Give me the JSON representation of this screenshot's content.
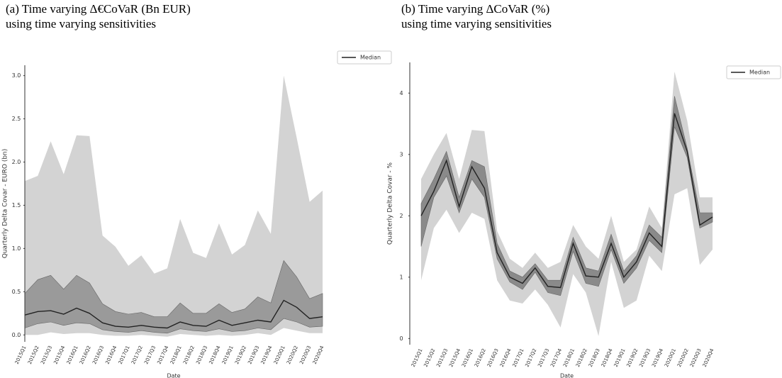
{
  "chart_data": [
    {
      "type": "line",
      "title": "(a) Time varying Δ€CoVaR (Bn EUR)",
      "subtitle": "using time varying sensitivities",
      "x_label": "Date",
      "y_label": "Quarterly Delta Covar - EURO (bn)",
      "categories": [
        "2015Q1",
        "2015Q2",
        "2015Q3",
        "2015Q4",
        "2016Q1",
        "2016Q2",
        "2016Q3",
        "2016Q4",
        "2017Q1",
        "2017Q2",
        "2017Q3",
        "2017Q4",
        "2018Q1",
        "2018Q2",
        "2018Q3",
        "2018Q4",
        "2019Q1",
        "2019Q2",
        "2019Q3",
        "2019Q4",
        "2020Q1",
        "2020Q2",
        "2020Q3",
        "2020Q4"
      ],
      "bands": [
        {
          "color": "#d3d3d3",
          "upper": [
            1.78,
            1.84,
            2.24,
            1.86,
            2.31,
            2.3,
            1.15,
            1.02,
            0.8,
            0.92,
            0.71,
            0.77,
            1.34,
            0.95,
            0.89,
            1.29,
            0.93,
            1.04,
            1.44,
            1.17,
            3.0,
            2.28,
            1.54,
            1.67
          ],
          "lower": [
            0.0,
            0.0,
            0.03,
            0.01,
            0.02,
            0.02,
            0.0,
            -0.01,
            -0.01,
            0.0,
            -0.01,
            -0.02,
            0.01,
            0.0,
            -0.01,
            0.0,
            -0.01,
            0.0,
            0.02,
            0.0,
            0.08,
            0.05,
            0.02,
            0.02
          ]
        },
        {
          "color": "#9a9a9a",
          "upper": [
            0.48,
            0.64,
            0.69,
            0.53,
            0.69,
            0.6,
            0.36,
            0.27,
            0.24,
            0.26,
            0.21,
            0.21,
            0.37,
            0.25,
            0.25,
            0.36,
            0.26,
            0.3,
            0.44,
            0.37,
            0.86,
            0.67,
            0.42,
            0.48
          ],
          "lower": [
            0.08,
            0.13,
            0.15,
            0.11,
            0.14,
            0.13,
            0.06,
            0.04,
            0.03,
            0.05,
            0.03,
            0.02,
            0.07,
            0.05,
            0.04,
            0.07,
            0.04,
            0.05,
            0.08,
            0.06,
            0.19,
            0.15,
            0.09,
            0.1
          ]
        }
      ],
      "series": [
        {
          "name": "Median",
          "color": "#222222",
          "values": [
            0.23,
            0.27,
            0.28,
            0.24,
            0.31,
            0.25,
            0.14,
            0.1,
            0.09,
            0.11,
            0.09,
            0.08,
            0.15,
            0.11,
            0.1,
            0.17,
            0.11,
            0.14,
            0.17,
            0.15,
            0.4,
            0.32,
            0.19,
            0.21
          ]
        }
      ],
      "ylim": [
        -0.08,
        3.12
      ],
      "yticks": [
        {
          "value": 0,
          "label": "0.0"
        },
        0.5,
        {
          "value": 1,
          "label": "1.0"
        },
        1.5,
        {
          "value": 2,
          "label": "2.0"
        },
        2.5,
        {
          "value": 3,
          "label": "3.0"
        }
      ],
      "legend": "outside-top-right",
      "grid": false
    },
    {
      "type": "line",
      "title": "(b) Time varying ΔCoVaR (%)",
      "subtitle": "using time varying sensitivities",
      "x_label": "Date",
      "y_label": "Quarterly Delta Covar - %",
      "categories": [
        "2015Q1",
        "2015Q2",
        "2015Q3",
        "2015Q4",
        "2016Q1",
        "2016Q2",
        "2016Q3",
        "2016Q4",
        "2017Q1",
        "2017Q2",
        "2017Q3",
        "2017Q4",
        "2018Q1",
        "2018Q2",
        "2018Q3",
        "2018Q4",
        "2019Q1",
        "2019Q2",
        "2019Q3",
        "2019Q4",
        "2020Q1",
        "2020Q2",
        "2020Q3",
        "2020Q4"
      ],
      "bands": [
        {
          "color": "#d3d3d3",
          "upper": [
            2.6,
            3.0,
            3.35,
            2.6,
            3.4,
            3.38,
            1.75,
            1.3,
            1.15,
            1.4,
            1.15,
            1.25,
            1.85,
            1.5,
            1.3,
            2.0,
            1.25,
            1.45,
            2.15,
            1.8,
            4.35,
            3.55,
            2.3,
            2.3
          ],
          "lower": [
            0.95,
            1.8,
            2.1,
            1.72,
            2.05,
            1.95,
            0.95,
            0.62,
            0.57,
            0.8,
            0.55,
            0.18,
            1.05,
            0.75,
            0.04,
            1.25,
            0.5,
            0.62,
            1.35,
            1.1,
            2.35,
            2.45,
            1.2,
            1.45
          ]
        },
        {
          "color": "#8a8a8a",
          "upper": [
            2.2,
            2.6,
            3.05,
            2.3,
            2.9,
            2.8,
            1.55,
            1.1,
            1.0,
            1.22,
            0.95,
            0.95,
            1.65,
            1.15,
            1.1,
            1.7,
            1.1,
            1.35,
            1.85,
            1.65,
            3.95,
            3.1,
            2.05,
            2.05
          ],
          "lower": [
            1.5,
            2.3,
            2.65,
            2.05,
            2.6,
            2.3,
            1.3,
            0.92,
            0.8,
            1.08,
            0.75,
            0.7,
            1.42,
            0.9,
            0.85,
            1.45,
            0.9,
            1.15,
            1.6,
            1.4,
            3.45,
            2.95,
            1.8,
            1.9
          ]
        }
      ],
      "series": [
        {
          "name": "Median",
          "color": "#222222",
          "values": [
            2.0,
            2.4,
            2.9,
            2.15,
            2.8,
            2.45,
            1.4,
            1.0,
            0.9,
            1.15,
            0.85,
            0.83,
            1.55,
            1.02,
            1.0,
            1.55,
            1.0,
            1.25,
            1.72,
            1.5,
            3.67,
            3.05,
            1.85,
            1.98
          ]
        }
      ],
      "ylim": [
        -0.1,
        4.5
      ],
      "yticks": [
        0,
        1,
        2,
        3,
        4
      ],
      "legend": "outside-top-right",
      "grid": false
    }
  ]
}
